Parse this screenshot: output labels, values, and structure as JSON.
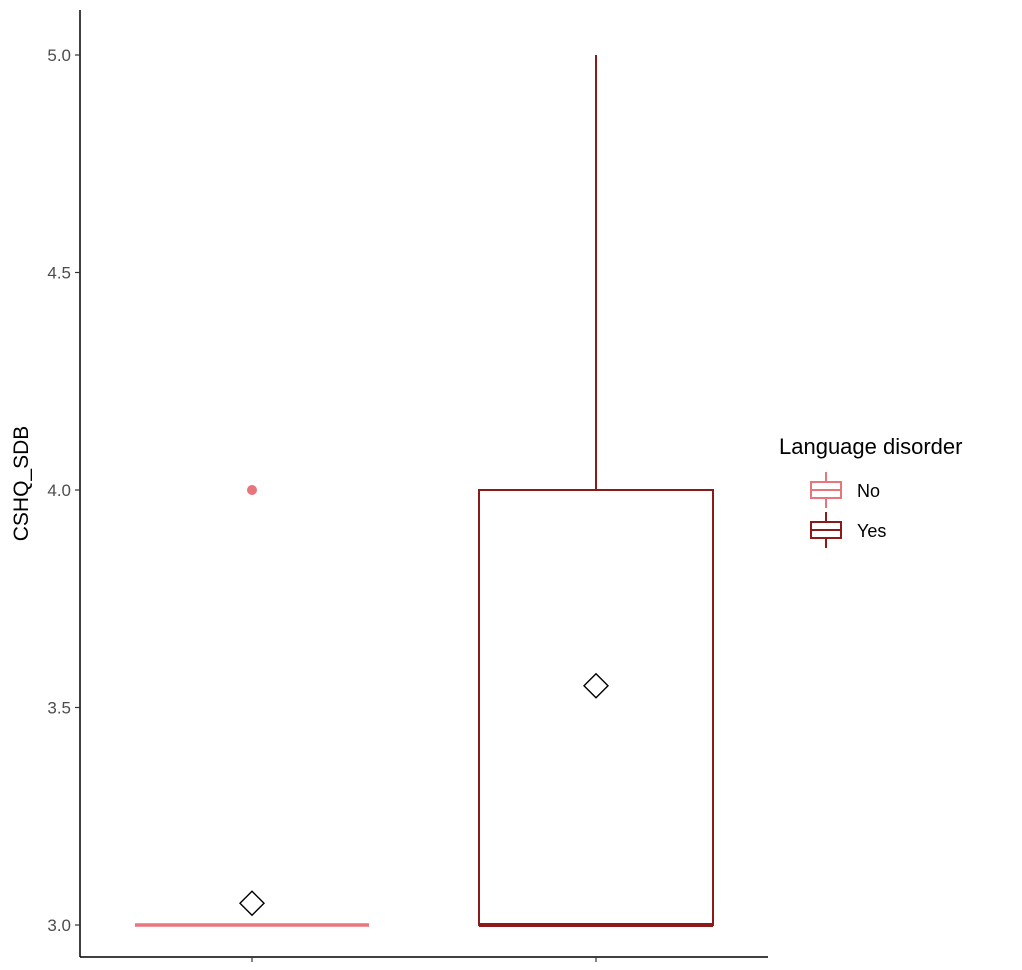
{
  "chart_data": {
    "type": "boxplot",
    "ylabel": "CSHQ_SDB",
    "xlabel": "",
    "ylim": [
      2.97,
      5.06
    ],
    "yticks": [
      3.0,
      3.5,
      4.0,
      4.5,
      5.0
    ],
    "ytick_labels": [
      "3.0",
      "3.5",
      "4.0",
      "4.5",
      "5.0"
    ],
    "grid": false,
    "legend": {
      "title": "Language disorder",
      "position": "right"
    },
    "series": [
      {
        "name": "No",
        "color": "#e8747c",
        "min": 3.0,
        "q1": 3.0,
        "median": 3.0,
        "q3": 3.0,
        "max": 3.0,
        "mean": 3.05,
        "outliers": [
          4.0
        ]
      },
      {
        "name": "Yes",
        "color": "#8b1a1a",
        "min": 3.0,
        "q1": 3.0,
        "median": 3.0,
        "q3": 4.0,
        "max": 5.0,
        "mean": 3.55,
        "outliers": []
      }
    ]
  }
}
